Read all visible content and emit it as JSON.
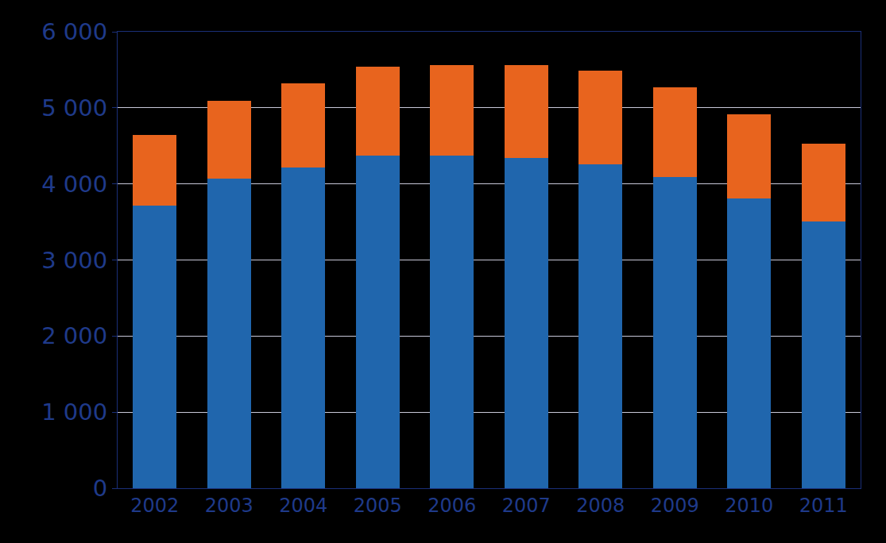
{
  "chart_data": {
    "type": "bar",
    "stacked": true,
    "grid": true,
    "categories": [
      "2002",
      "2003",
      "2004",
      "2005",
      "2006",
      "2007",
      "2008",
      "2009",
      "2010",
      "2011"
    ],
    "series": [
      {
        "color": "#2066ad",
        "values": [
          3720,
          4070,
          4220,
          4370,
          4370,
          4340,
          4260,
          4090,
          3810,
          3510
        ]
      },
      {
        "color": "#e8641e",
        "values": [
          920,
          1020,
          1100,
          1170,
          1190,
          1220,
          1230,
          1180,
          1100,
          1020
        ]
      }
    ],
    "ylim": [
      0,
      6000
    ],
    "yticks": [
      0,
      {
        "value": 1000,
        "label": "1 000"
      },
      {
        "value": 2000,
        "label": "2 000"
      },
      {
        "value": 3000,
        "label": "3 000"
      },
      {
        "value": 4000,
        "label": "4 000"
      },
      {
        "value": 5000,
        "label": "5 000"
      },
      {
        "value": 6000,
        "label": "6 000"
      }
    ]
  }
}
